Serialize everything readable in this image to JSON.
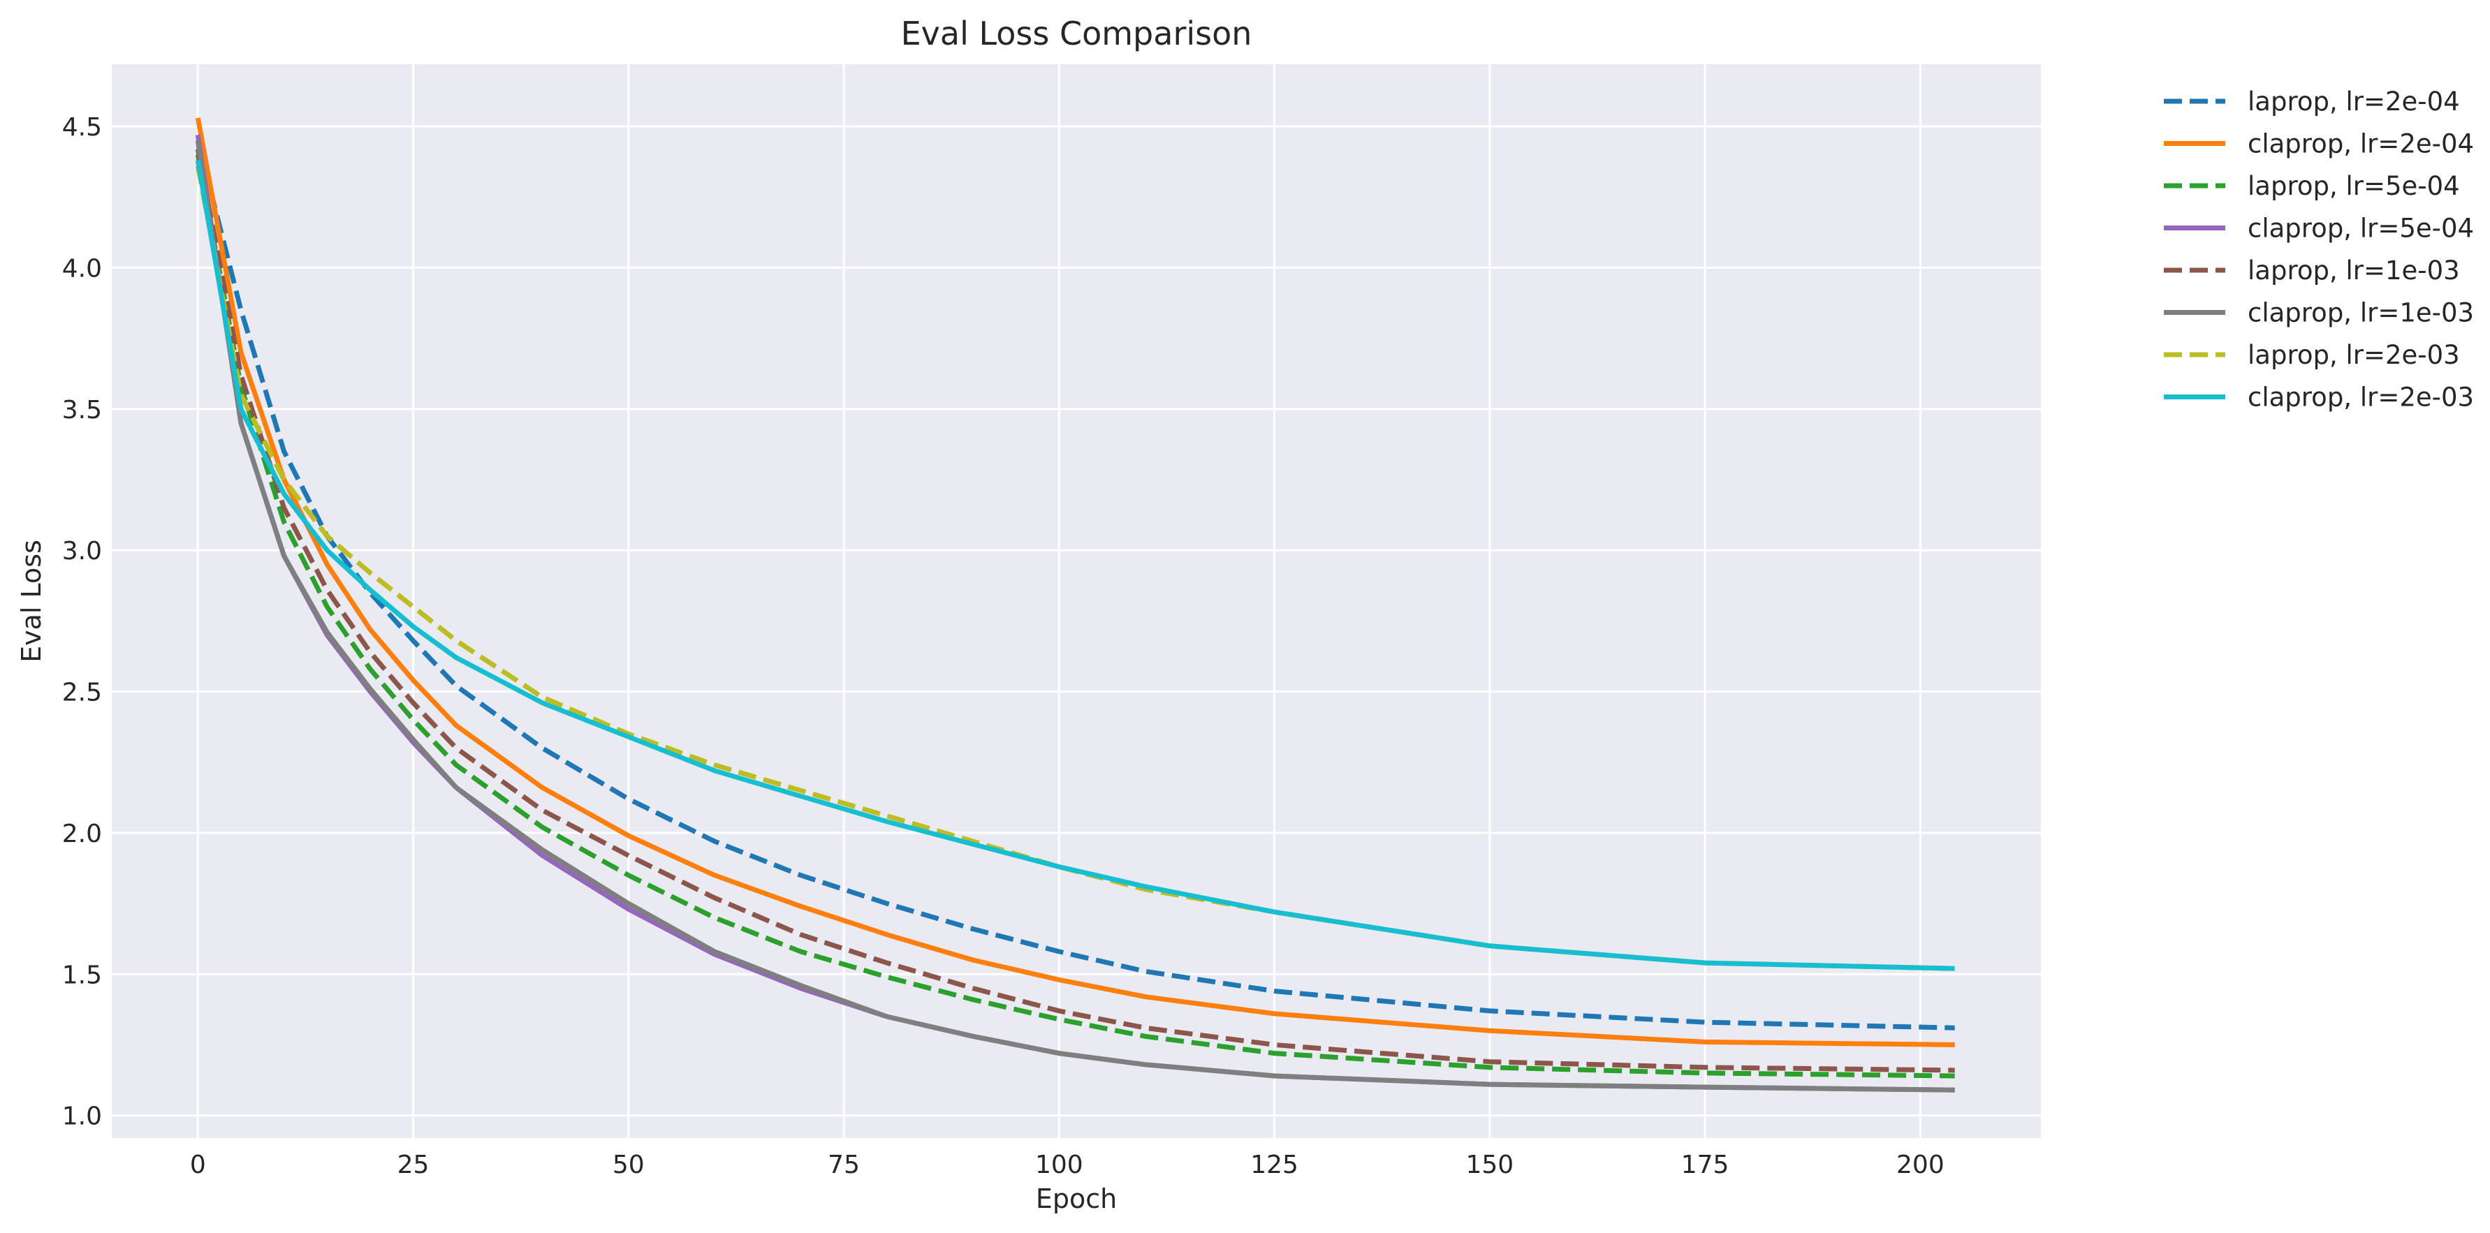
{
  "chart_data": {
    "type": "line",
    "title": "Eval Loss Comparison",
    "xlabel": "Epoch",
    "ylabel": "Eval Loss",
    "xlim": [
      -10,
      214
    ],
    "ylim": [
      0.92,
      4.72
    ],
    "xticks": [
      0,
      25,
      50,
      75,
      100,
      125,
      150,
      175,
      200
    ],
    "yticks": [
      1.0,
      1.5,
      2.0,
      2.5,
      3.0,
      3.5,
      4.0,
      4.5
    ],
    "ytick_labels": [
      "1.0",
      "1.5",
      "2.0",
      "2.5",
      "3.0",
      "3.5",
      "4.0",
      "4.5"
    ],
    "grid": true,
    "legend_position": "outside-top-right",
    "x": [
      0,
      5,
      10,
      15,
      20,
      25,
      30,
      40,
      50,
      60,
      70,
      80,
      90,
      100,
      110,
      125,
      150,
      175,
      204
    ],
    "series": [
      {
        "name": "laprop, lr=2e-04",
        "color": "#1f77b4",
        "dash": true,
        "values": [
          4.45,
          3.85,
          3.35,
          3.05,
          2.85,
          2.68,
          2.52,
          2.3,
          2.12,
          1.97,
          1.85,
          1.75,
          1.66,
          1.58,
          1.51,
          1.44,
          1.37,
          1.33,
          1.31
        ]
      },
      {
        "name": "claprop, lr=2e-04",
        "color": "#ff7f0e",
        "dash": false,
        "values": [
          4.53,
          3.7,
          3.25,
          2.95,
          2.72,
          2.54,
          2.38,
          2.16,
          1.99,
          1.85,
          1.74,
          1.64,
          1.55,
          1.48,
          1.42,
          1.36,
          1.3,
          1.26,
          1.25
        ]
      },
      {
        "name": "laprop, lr=5e-04",
        "color": "#2ca02c",
        "dash": true,
        "values": [
          4.4,
          3.58,
          3.1,
          2.8,
          2.58,
          2.4,
          2.24,
          2.02,
          1.85,
          1.7,
          1.58,
          1.49,
          1.41,
          1.34,
          1.28,
          1.22,
          1.17,
          1.15,
          1.14
        ]
      },
      {
        "name": "claprop, lr=5e-04",
        "color": "#9467bd",
        "dash": false,
        "values": [
          4.47,
          3.45,
          2.98,
          2.7,
          2.5,
          2.32,
          2.16,
          1.92,
          1.73,
          1.57,
          1.45,
          1.35,
          1.28,
          1.22,
          1.18,
          1.14,
          1.11,
          1.1,
          1.09
        ]
      },
      {
        "name": "laprop, lr=1e-03",
        "color": "#8c564b",
        "dash": true,
        "values": [
          4.42,
          3.62,
          3.15,
          2.86,
          2.64,
          2.46,
          2.3,
          2.08,
          1.92,
          1.77,
          1.64,
          1.54,
          1.45,
          1.37,
          1.31,
          1.25,
          1.19,
          1.17,
          1.16
        ]
      },
      {
        "name": "claprop, lr=1e-03",
        "color": "#7f7f7f",
        "dash": false,
        "values": [
          4.45,
          3.45,
          2.98,
          2.71,
          2.51,
          2.33,
          2.16,
          1.94,
          1.75,
          1.58,
          1.46,
          1.35,
          1.28,
          1.22,
          1.18,
          1.14,
          1.11,
          1.1,
          1.09
        ]
      },
      {
        "name": "laprop, lr=2e-03",
        "color": "#bcbd22",
        "dash": true,
        "values": [
          4.36,
          3.55,
          3.25,
          3.05,
          2.92,
          2.8,
          2.68,
          2.48,
          2.35,
          2.24,
          2.15,
          2.06,
          1.97,
          1.88,
          1.8,
          1.72,
          1.6,
          1.54,
          1.52
        ]
      },
      {
        "name": "claprop, lr=2e-03",
        "color": "#17becf",
        "dash": false,
        "values": [
          4.38,
          3.5,
          3.2,
          3.0,
          2.86,
          2.73,
          2.62,
          2.46,
          2.34,
          2.22,
          2.13,
          2.04,
          1.96,
          1.88,
          1.81,
          1.72,
          1.6,
          1.54,
          1.52
        ]
      }
    ]
  }
}
